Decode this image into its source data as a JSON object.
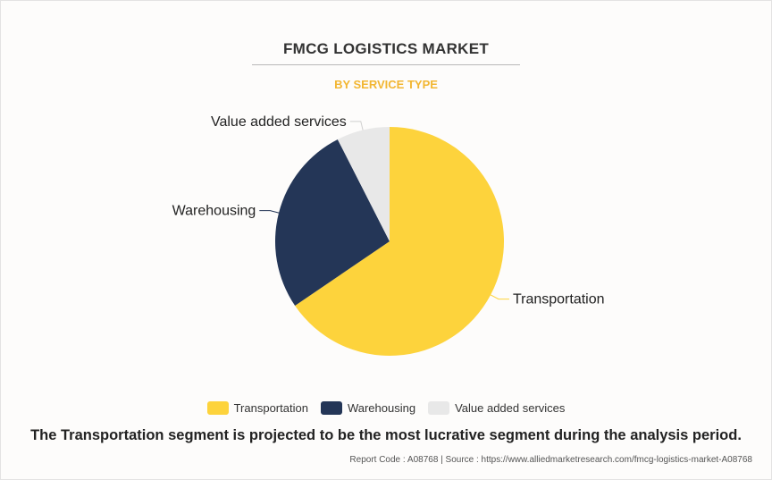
{
  "header": {
    "title": "FMCG LOGISTICS MARKET",
    "subtitle": "BY SERVICE TYPE"
  },
  "colors": {
    "accent": "#f2b632",
    "transportation": "#fdd33c",
    "warehousing": "#243657",
    "value_added_services": "#e8e8e8"
  },
  "chart_data": {
    "type": "pie",
    "title": "FMCG LOGISTICS MARKET",
    "subtitle": "BY SERVICE TYPE",
    "start_angle_deg": 0,
    "direction": "clockwise",
    "legend_position": "bottom",
    "slices": [
      {
        "label": "Transportation",
        "value": 65.5,
        "color": "#fdd33c"
      },
      {
        "label": "Warehousing",
        "value": 27.0,
        "color": "#243657"
      },
      {
        "label": "Value added services",
        "value": 7.5,
        "color": "#e8e8e8"
      }
    ]
  },
  "legend": {
    "items": [
      {
        "label": "Transportation"
      },
      {
        "label": "Warehousing"
      },
      {
        "label": "Value added services"
      }
    ]
  },
  "footer": {
    "statement": "The Transportation segment is projected to be the most lucrative segment during the analysis period.",
    "report_info": "Report Code : A08768  |  Source : https://www.alliedmarketresearch.com/fmcg-logistics-market-A08768"
  }
}
